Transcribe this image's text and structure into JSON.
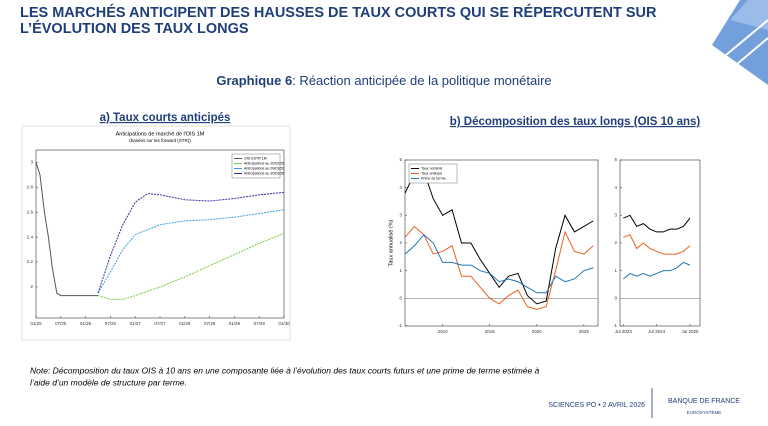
{
  "header": {
    "title_lines": [
      "LES MARCHÉS ANTICIPENT DES HAUSSES DE TAUX COURTS QUI SE RÉPERCUTENT SUR",
      "L’ÉVOLUTION DES TAUX LONGS"
    ],
    "figure_label": "Graphique 6",
    "figure_title": ": Réaction anticipée de la politique monétaire"
  },
  "panels": {
    "a": "a) Taux courts anticipés",
    "b": "b) Décomposition des taux longs (OIS 10 ans)"
  },
  "note_lines": [
    "Note: Décomposition du taux OIS à 10 ans en une composante liée à l’évolution des taux courts futurs et une prime de terme estimée à",
    "l’aide d’un modèle de structure par terme."
  ],
  "footer": {
    "event": "SCIENCES PO • 2 AVRIL 2026",
    "brand": "BANQUE DE FRANCE",
    "brand_sub": "EUROSYSTÈME"
  },
  "chart_data": [
    {
      "type": "line",
      "title": "Anticipations de marché de l'OIS 1M",
      "subtitle": "(basées sur les forward (STR))",
      "legend": "upper right",
      "xlim": [
        2025,
        2030
      ],
      "ylim": [
        1.75,
        3.1
      ],
      "xticks": [
        {
          "value": 2025,
          "label": "01/25"
        },
        {
          "value": 2025.5,
          "label": "07/25"
        },
        {
          "value": 2026,
          "label": "01/26"
        },
        {
          "value": 2026.5,
          "label": "07/26"
        },
        {
          "value": 2027,
          "label": "01/27"
        },
        {
          "value": 2027.5,
          "label": "07/27"
        },
        {
          "value": 2028,
          "label": "01/28"
        },
        {
          "value": 2028.5,
          "label": "07/28"
        },
        {
          "value": 2029,
          "label": "01/29"
        },
        {
          "value": 2029.5,
          "label": "07/29"
        },
        {
          "value": 2030,
          "label": "01/30"
        }
      ],
      "yticks": [
        2,
        2.2,
        2.4,
        2.6,
        2.8,
        3
      ],
      "series": [
        {
          "name": "OIS ESTR 1M",
          "color": "#555555",
          "dash": false,
          "x": [
            2025,
            2025.08,
            2025.17,
            2025.25,
            2025.33,
            2025.42,
            2025.5,
            2025.75,
            2026,
            2026.25
          ],
          "values": [
            3.0,
            2.9,
            2.6,
            2.4,
            2.15,
            1.95,
            1.93,
            1.93,
            1.93,
            1.93
          ]
        },
        {
          "name": "Anticipations au 20/02/26",
          "color": "#7ac943",
          "dash": true,
          "x": [
            2026.25,
            2026.5,
            2026.75,
            2027,
            2027.5,
            2028,
            2028.5,
            2029,
            2029.5,
            2030
          ],
          "values": [
            1.93,
            1.9,
            1.9,
            1.93,
            2.0,
            2.08,
            2.17,
            2.26,
            2.35,
            2.43
          ]
        },
        {
          "name": "Anticipations au 09/03/26",
          "color": "#3fa0e0",
          "dash": true,
          "x": [
            2026.25,
            2026.5,
            2026.75,
            2027,
            2027.5,
            2028,
            2028.5,
            2029,
            2029.5,
            2030
          ],
          "values": [
            1.95,
            2.12,
            2.3,
            2.42,
            2.5,
            2.53,
            2.54,
            2.56,
            2.59,
            2.62
          ]
        },
        {
          "name": "Anticipations au 30/03/26",
          "color": "#3b2fa0",
          "dash": true,
          "x": [
            2026.25,
            2026.5,
            2026.75,
            2027,
            2027.25,
            2027.5,
            2028,
            2028.5,
            2029,
            2029.5,
            2030
          ],
          "values": [
            1.95,
            2.25,
            2.5,
            2.68,
            2.75,
            2.74,
            2.7,
            2.69,
            2.71,
            2.74,
            2.76
          ]
        }
      ]
    },
    {
      "type": "line",
      "ylabel": "Taux annualisé (%)",
      "legend": "upper left",
      "xlim": [
        2006,
        2026.5
      ],
      "ylim": [
        -1,
        5
      ],
      "xticks": [
        2010,
        2015,
        2020,
        2025
      ],
      "yticks": [
        -1,
        0,
        1,
        2,
        3,
        4,
        5
      ],
      "zero_line": true,
      "series": [
        {
          "name": "Taux nominal",
          "color": "#000000",
          "x": [
            2006,
            2007,
            2008,
            2009,
            2010,
            2011,
            2012,
            2013,
            2014,
            2015,
            2016,
            2017,
            2018,
            2019,
            2020,
            2021,
            2022,
            2023,
            2024,
            2025,
            2026
          ],
          "values": [
            3.8,
            4.5,
            4.6,
            3.6,
            3.0,
            3.2,
            2.0,
            2.0,
            1.4,
            0.9,
            0.4,
            0.8,
            0.9,
            0.1,
            -0.2,
            -0.1,
            1.8,
            3.0,
            2.4,
            2.6,
            2.8
          ]
        },
        {
          "name": "Taux anticipé",
          "color": "#e8621c",
          "x": [
            2006,
            2007,
            2008,
            2009,
            2010,
            2011,
            2012,
            2013,
            2014,
            2015,
            2016,
            2017,
            2018,
            2019,
            2020,
            2021,
            2022,
            2023,
            2024,
            2025,
            2026
          ],
          "values": [
            2.2,
            2.6,
            2.3,
            1.6,
            1.7,
            1.9,
            0.8,
            0.8,
            0.4,
            0.0,
            -0.2,
            0.1,
            0.3,
            -0.3,
            -0.4,
            -0.3,
            1.0,
            2.4,
            1.7,
            1.6,
            1.9
          ]
        },
        {
          "name": "Prime de terme",
          "color": "#1f77b4",
          "x": [
            2006,
            2007,
            2008,
            2009,
            2010,
            2011,
            2012,
            2013,
            2014,
            2015,
            2016,
            2017,
            2018,
            2019,
            2020,
            2021,
            2022,
            2023,
            2024,
            2025,
            2026
          ],
          "values": [
            1.6,
            1.9,
            2.3,
            2.0,
            1.3,
            1.3,
            1.2,
            1.2,
            1.0,
            0.9,
            0.6,
            0.7,
            0.6,
            0.4,
            0.2,
            0.2,
            0.8,
            0.6,
            0.7,
            1.0,
            1.1
          ]
        }
      ]
    },
    {
      "type": "line",
      "legend": "none",
      "xlim": [
        2023.4,
        2025.8
      ],
      "ylim": [
        -1,
        5
      ],
      "xticks": [
        {
          "value": 2023.5,
          "label": "Jul 2023"
        },
        {
          "value": 2024.5,
          "label": "Jul 2024"
        },
        {
          "value": 2025.5,
          "label": "Jul 2025"
        }
      ],
      "yticks": [
        -1,
        0,
        1,
        2,
        3,
        4,
        5
      ],
      "zero_line": true,
      "series": [
        {
          "color": "#000000",
          "x": [
            2023.5,
            2023.7,
            2023.9,
            2024.1,
            2024.3,
            2024.5,
            2024.7,
            2024.9,
            2025.1,
            2025.3,
            2025.5
          ],
          "values": [
            2.9,
            3.0,
            2.6,
            2.7,
            2.5,
            2.4,
            2.4,
            2.5,
            2.5,
            2.6,
            2.9
          ]
        },
        {
          "color": "#e8621c",
          "x": [
            2023.5,
            2023.7,
            2023.9,
            2024.1,
            2024.3,
            2024.5,
            2024.7,
            2024.9,
            2025.1,
            2025.3,
            2025.5
          ],
          "values": [
            2.2,
            2.3,
            1.8,
            2.0,
            1.8,
            1.7,
            1.6,
            1.6,
            1.6,
            1.7,
            1.9
          ]
        },
        {
          "color": "#1f77b4",
          "x": [
            2023.5,
            2023.7,
            2023.9,
            2024.1,
            2024.3,
            2024.5,
            2024.7,
            2024.9,
            2025.1,
            2025.3,
            2025.5
          ],
          "values": [
            0.7,
            0.9,
            0.8,
            0.9,
            0.8,
            0.9,
            1.0,
            1.0,
            1.1,
            1.3,
            1.2
          ]
        }
      ]
    }
  ]
}
